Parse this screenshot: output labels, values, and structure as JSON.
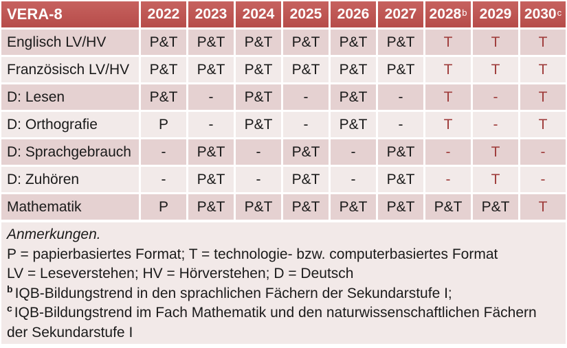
{
  "colors": {
    "header_bg": "#C0504D",
    "row_band_dark": "#E5D1D1",
    "row_band_light": "#F2EAE9",
    "notes_bg": "#F2E9E8",
    "accent_text": "#9E3B3A",
    "text": "#1A1A1A",
    "grid_line": "#FFFFFF"
  },
  "table": {
    "title": "VERA-8",
    "years": [
      {
        "text": "2022",
        "sup": ""
      },
      {
        "text": "2023",
        "sup": ""
      },
      {
        "text": "2024",
        "sup": ""
      },
      {
        "text": "2025",
        "sup": ""
      },
      {
        "text": "2026",
        "sup": ""
      },
      {
        "text": "2027",
        "sup": ""
      },
      {
        "text": "2028",
        "sup": "b"
      },
      {
        "text": "2029",
        "sup": ""
      },
      {
        "text": "2030",
        "sup": "c"
      }
    ],
    "rows": [
      {
        "label": "Englisch LV/HV",
        "cells": [
          {
            "t": "P&T",
            "red": false
          },
          {
            "t": "P&T",
            "red": false
          },
          {
            "t": "P&T",
            "red": false
          },
          {
            "t": "P&T",
            "red": false
          },
          {
            "t": "P&T",
            "red": false
          },
          {
            "t": "P&T",
            "red": false
          },
          {
            "t": "T",
            "red": true
          },
          {
            "t": "T",
            "red": true
          },
          {
            "t": "T",
            "red": true
          }
        ]
      },
      {
        "label": "Französisch LV/HV",
        "cells": [
          {
            "t": "P&T",
            "red": false
          },
          {
            "t": "P&T",
            "red": false
          },
          {
            "t": "P&T",
            "red": false
          },
          {
            "t": "P&T",
            "red": false
          },
          {
            "t": "P&T",
            "red": false
          },
          {
            "t": "P&T",
            "red": false
          },
          {
            "t": "T",
            "red": true
          },
          {
            "t": "T",
            "red": true
          },
          {
            "t": "T",
            "red": true
          }
        ]
      },
      {
        "label": "D: Lesen",
        "cells": [
          {
            "t": "P&T",
            "red": false
          },
          {
            "t": "-",
            "red": false
          },
          {
            "t": "P&T",
            "red": false
          },
          {
            "t": "-",
            "red": false
          },
          {
            "t": "P&T",
            "red": false
          },
          {
            "t": "-",
            "red": false
          },
          {
            "t": "T",
            "red": true
          },
          {
            "t": "-",
            "red": true
          },
          {
            "t": "T",
            "red": true
          }
        ]
      },
      {
        "label": "D: Orthografie",
        "cells": [
          {
            "t": "P",
            "red": false
          },
          {
            "t": "-",
            "red": false
          },
          {
            "t": "P&T",
            "red": false
          },
          {
            "t": "-",
            "red": false
          },
          {
            "t": "P&T",
            "red": false
          },
          {
            "t": "-",
            "red": false
          },
          {
            "t": "T",
            "red": true
          },
          {
            "t": "-",
            "red": true
          },
          {
            "t": "T",
            "red": true
          }
        ]
      },
      {
        "label": "D: Sprachgebrauch",
        "cells": [
          {
            "t": "-",
            "red": false
          },
          {
            "t": "P&T",
            "red": false
          },
          {
            "t": "-",
            "red": false
          },
          {
            "t": "P&T",
            "red": false
          },
          {
            "t": "-",
            "red": false
          },
          {
            "t": "P&T",
            "red": false
          },
          {
            "t": "-",
            "red": true
          },
          {
            "t": "T",
            "red": true
          },
          {
            "t": "-",
            "red": true
          }
        ]
      },
      {
        "label": "D: Zuhören",
        "cells": [
          {
            "t": "-",
            "red": false
          },
          {
            "t": "P&T",
            "red": false
          },
          {
            "t": "-",
            "red": false
          },
          {
            "t": "P&T",
            "red": false
          },
          {
            "t": "-",
            "red": false
          },
          {
            "t": "P&T",
            "red": false
          },
          {
            "t": "-",
            "red": true
          },
          {
            "t": "T",
            "red": true
          },
          {
            "t": "-",
            "red": true
          }
        ]
      },
      {
        "label": "Mathematik",
        "cells": [
          {
            "t": "P",
            "red": false
          },
          {
            "t": "P&T",
            "red": false
          },
          {
            "t": "P&T",
            "red": false
          },
          {
            "t": "P&T",
            "red": false
          },
          {
            "t": "P&T",
            "red": false
          },
          {
            "t": "P&T",
            "red": false
          },
          {
            "t": "P&T",
            "red": false
          },
          {
            "t": "P&T",
            "red": false
          },
          {
            "t": "T",
            "red": true
          }
        ]
      }
    ]
  },
  "notes": {
    "lines": [
      {
        "sup": "",
        "italic": true,
        "text": "Anmerkungen."
      },
      {
        "sup": "",
        "italic": false,
        "text": "P = papierbasiertes Format; T = technologie- bzw. computerbasiertes Format"
      },
      {
        "sup": "",
        "italic": false,
        "text": "LV = Leseverstehen; HV = Hörverstehen; D = Deutsch"
      },
      {
        "sup": "b",
        "italic": false,
        "text": "IQB-Bildungstrend in den sprachlichen Fächern der Sekundarstufe I;"
      },
      {
        "sup": "c",
        "italic": false,
        "text": "IQB-Bildungstrend im Fach Mathematik und den naturwissenschaftlichen Fächern der Sekundarstufe I"
      }
    ]
  }
}
